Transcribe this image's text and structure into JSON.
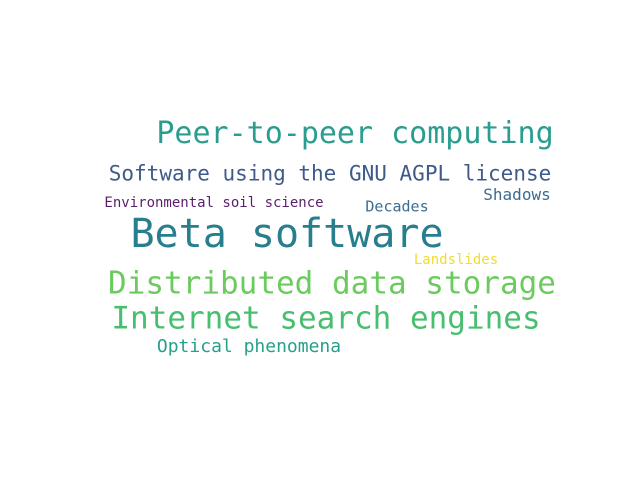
{
  "words": [
    {
      "id": "peer",
      "text": "Peer-to-peer computing",
      "color": "#2a9d8f"
    },
    {
      "id": "gnu",
      "text": "Software using the GNU AGPL license",
      "color": "#3f5a8a"
    },
    {
      "id": "shadows",
      "text": "Shadows",
      "color": "#3d6a8f"
    },
    {
      "id": "env",
      "text": "Environmental soil science",
      "color": "#5a1f6b"
    },
    {
      "id": "decades",
      "text": "Decades",
      "color": "#3a6d91"
    },
    {
      "id": "beta",
      "text": "Beta software",
      "color": "#277f8e"
    },
    {
      "id": "land",
      "text": "Landslides",
      "color": "#f3dc2b"
    },
    {
      "id": "dist",
      "text": "Distributed data storage",
      "color": "#6ccb5f"
    },
    {
      "id": "internet",
      "text": "Internet search engines",
      "color": "#48bf6e"
    },
    {
      "id": "optical",
      "text": "Optical phenomena",
      "color": "#26a08a"
    }
  ]
}
